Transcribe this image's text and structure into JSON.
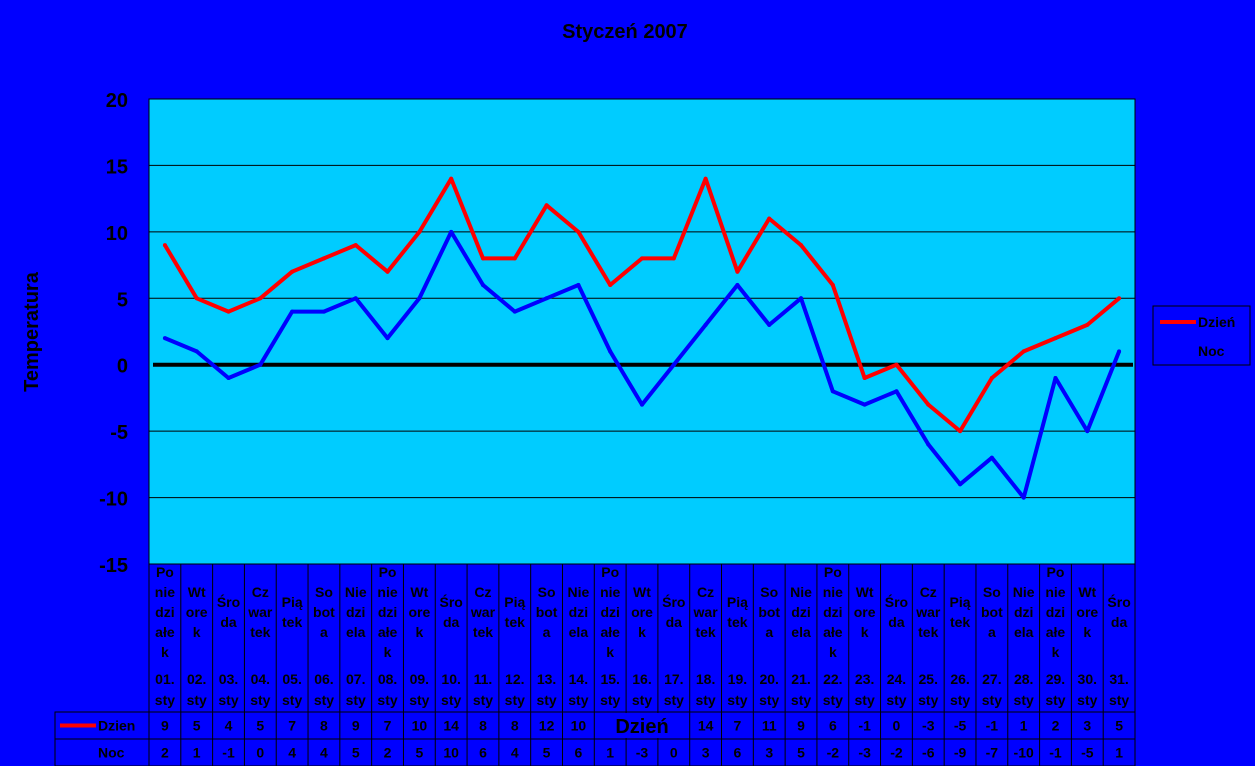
{
  "chart_data": {
    "type": "line",
    "title": "Styczeń 2007",
    "xlabel": "Dzień",
    "ylabel": "Temperatura",
    "ylim": [
      -15,
      20
    ],
    "yticks": [
      "20",
      "15",
      "10",
      "5",
      "0",
      "-5",
      "-10",
      "-15"
    ],
    "grid": true,
    "legend_position": "right",
    "weekdays": [
      [
        "Po",
        "nie",
        "dzi",
        "ałe",
        "k"
      ],
      [
        "Wt",
        "ore",
        "k"
      ],
      [
        "Śro",
        "da"
      ],
      [
        "Cz",
        "war",
        "tek"
      ],
      [
        "Pią",
        "tek"
      ],
      [
        "So",
        "bot",
        "a"
      ],
      [
        "Nie",
        "dzi",
        "ela"
      ],
      [
        "Po",
        "nie",
        "dzi",
        "ałe",
        "k"
      ],
      [
        "Wt",
        "ore",
        "k"
      ],
      [
        "Śro",
        "da"
      ],
      [
        "Cz",
        "war",
        "tek"
      ],
      [
        "Pią",
        "tek"
      ],
      [
        "So",
        "bot",
        "a"
      ],
      [
        "Nie",
        "dzi",
        "ela"
      ],
      [
        "Po",
        "nie",
        "dzi",
        "ałe",
        "k"
      ],
      [
        "Wt",
        "ore",
        "k"
      ],
      [
        "Śro",
        "da"
      ],
      [
        "Cz",
        "war",
        "tek"
      ],
      [
        "Pią",
        "tek"
      ],
      [
        "So",
        "bot",
        "a"
      ],
      [
        "Nie",
        "dzi",
        "ela"
      ],
      [
        "Po",
        "nie",
        "dzi",
        "ałe",
        "k"
      ],
      [
        "Wt",
        "ore",
        "k"
      ],
      [
        "Śro",
        "da"
      ],
      [
        "Cz",
        "war",
        "tek"
      ],
      [
        "Pią",
        "tek"
      ],
      [
        "So",
        "bot",
        "a"
      ],
      [
        "Nie",
        "dzi",
        "ela"
      ],
      [
        "Po",
        "nie",
        "dzi",
        "ałe",
        "k"
      ],
      [
        "Wt",
        "ore",
        "k"
      ],
      [
        "Śro",
        "da"
      ]
    ],
    "dates": [
      "01.",
      "02.",
      "03.",
      "04.",
      "05.",
      "06.",
      "07.",
      "08.",
      "09.",
      "10.",
      "11.",
      "12.",
      "13.",
      "14.",
      "15.",
      "16.",
      "17.",
      "18.",
      "19.",
      "20.",
      "21.",
      "22.",
      "23.",
      "24.",
      "25.",
      "26.",
      "27.",
      "28.",
      "29.",
      "30.",
      "31."
    ],
    "month_abbr": "sty",
    "series": [
      {
        "name": "Dzień",
        "table_label": "Dzien",
        "color": "#FF0000",
        "values": [
          9,
          5,
          4,
          5,
          7,
          8,
          9,
          7,
          10,
          14,
          8,
          8,
          12,
          10,
          6,
          8,
          8,
          14,
          7,
          11,
          9,
          6,
          -1,
          0,
          -3,
          -5,
          -1,
          1,
          2,
          3,
          5
        ]
      },
      {
        "name": "Noc",
        "table_label": "Noc",
        "color": "#0000FF",
        "values": [
          2,
          1,
          -1,
          0,
          4,
          4,
          5,
          2,
          5,
          10,
          6,
          4,
          5,
          6,
          1,
          -3,
          0,
          3,
          6,
          3,
          5,
          -2,
          -3,
          -2,
          -6,
          -9,
          -7,
          -10,
          -1,
          -5,
          1
        ]
      }
    ],
    "colors": {
      "background": "#0000FF",
      "plot_area": "#00CCFF",
      "grid": "#000000",
      "zero_line": "#000000"
    }
  }
}
